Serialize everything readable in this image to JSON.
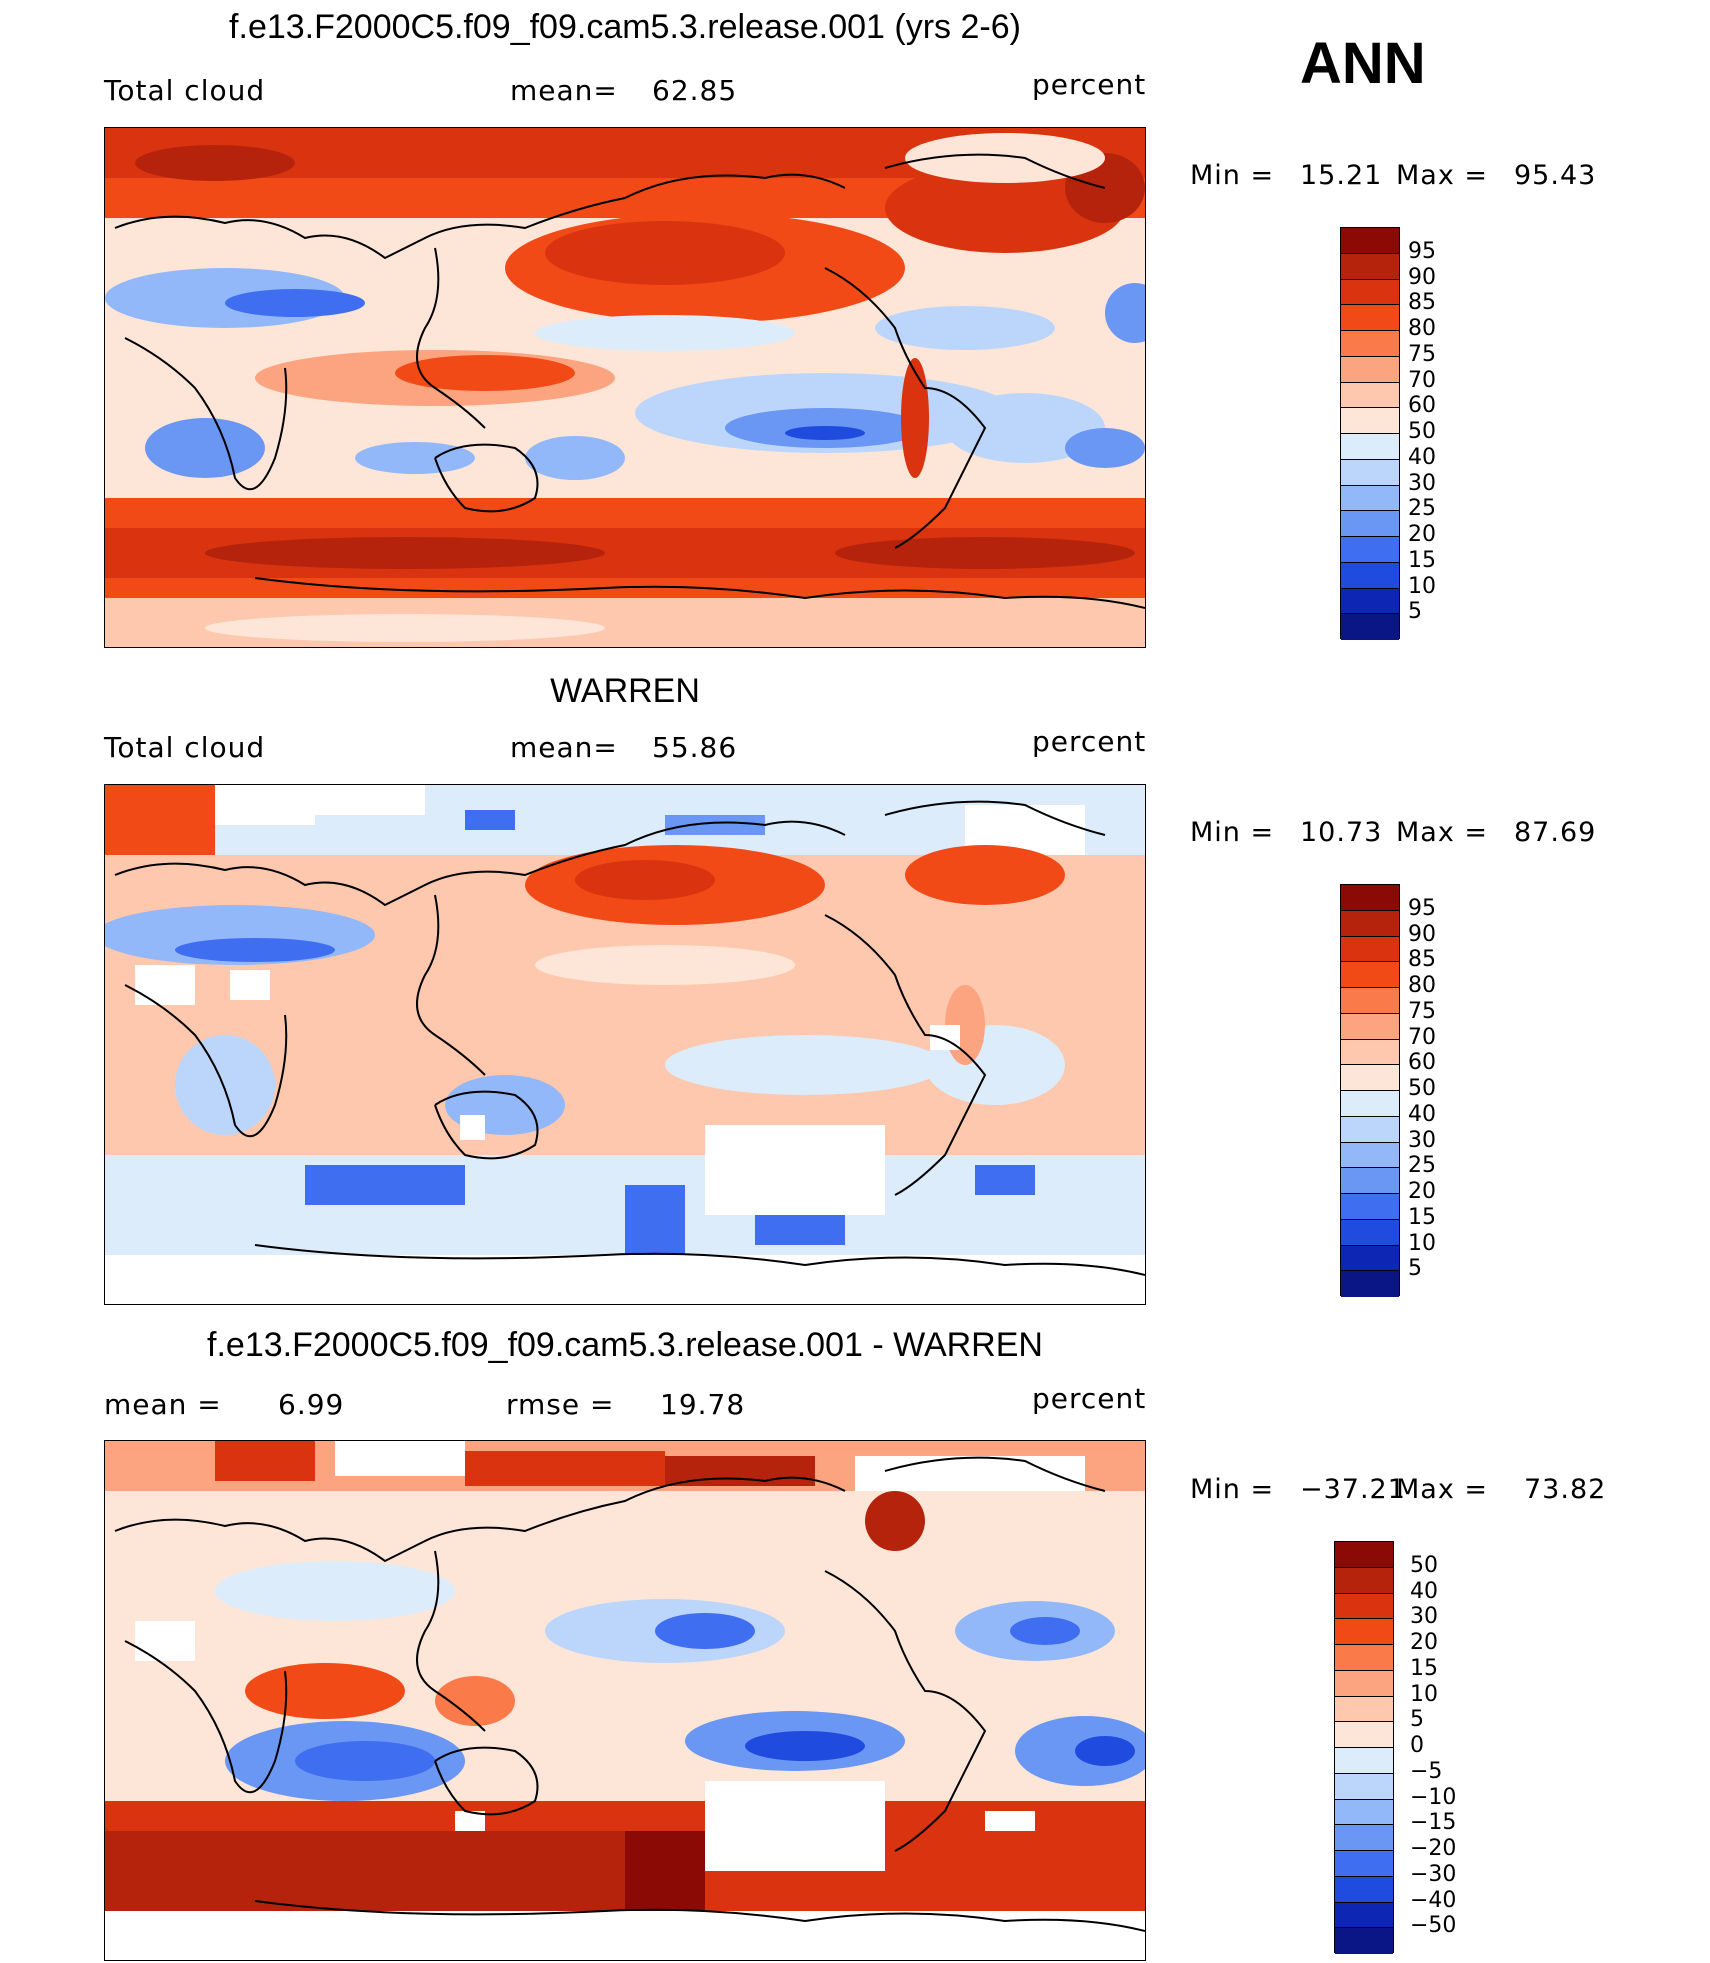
{
  "ann_label": "ANN",
  "units": "percent",
  "panels": [
    {
      "title": "f.e13.F2000C5.f09_f09.cam5.3.release.001 (yrs 2-6)",
      "left_label": "Total cloud",
      "stat_label": "mean=",
      "stat_value": "62.85",
      "right_label": "percent",
      "min_label": "Min  =",
      "min_value": "15.21",
      "max_label": "Max  =",
      "max_value": "95.43"
    },
    {
      "title": "WARREN",
      "left_label": "Total cloud",
      "stat_label": "mean=",
      "stat_value": "55.86",
      "right_label": "percent",
      "min_label": "Min  =",
      "min_value": "10.73",
      "max_label": "Max  =",
      "max_value": "87.69"
    },
    {
      "title": "f.e13.F2000C5.f09_f09.cam5.3.release.001 - WARREN",
      "left_label": "mean  =",
      "left_value": "6.99",
      "stat_label": "rmse  =",
      "stat_value": "19.78",
      "right_label": "percent",
      "min_label": "Min  =",
      "min_value": "−37.21",
      "max_label": "Max  =",
      "max_value": "73.82"
    }
  ],
  "colorbars": [
    {
      "labels": [
        "95",
        "90",
        "85",
        "80",
        "75",
        "70",
        "60",
        "50",
        "40",
        "30",
        "25",
        "20",
        "15",
        "10",
        "5"
      ],
      "colors": [
        "#8b0a05",
        "#b5230c",
        "#d9340f",
        "#f24a17",
        "#fb7a4a",
        "#fba47f",
        "#fdc8ad",
        "#fde6d8",
        "#dcecfb",
        "#bcd6fb",
        "#93b8f9",
        "#6a96f4",
        "#3f6ef0",
        "#1f4bdf",
        "#0d27b4",
        "#0a1686"
      ]
    },
    {
      "labels": [
        "95",
        "90",
        "85",
        "80",
        "75",
        "70",
        "60",
        "50",
        "40",
        "30",
        "25",
        "20",
        "15",
        "10",
        "5"
      ],
      "colors": [
        "#8b0a05",
        "#b5230c",
        "#d9340f",
        "#f24a17",
        "#fb7a4a",
        "#fba47f",
        "#fdc8ad",
        "#fde6d8",
        "#dcecfb",
        "#bcd6fb",
        "#93b8f9",
        "#6a96f4",
        "#3f6ef0",
        "#1f4bdf",
        "#0d27b4",
        "#0a1686"
      ]
    },
    {
      "labels": [
        "50",
        "40",
        "30",
        "20",
        "15",
        "10",
        "5",
        "0",
        "−5",
        "−10",
        "−15",
        "−20",
        "−30",
        "−40",
        "−50"
      ],
      "colors": [
        "#8b0a05",
        "#b5230c",
        "#d9340f",
        "#f24a17",
        "#fb7a4a",
        "#fba47f",
        "#fdc8ad",
        "#fde6d8",
        "#dcecfb",
        "#bcd6fb",
        "#93b8f9",
        "#6a96f4",
        "#3f6ef0",
        "#1f4bdf",
        "#0d27b4",
        "#0a1686"
      ]
    }
  ]
}
